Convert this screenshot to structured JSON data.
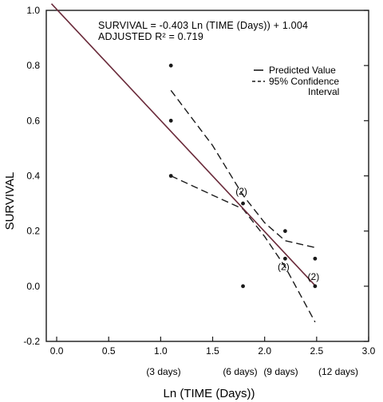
{
  "chart_data": {
    "type": "scatter",
    "title": "",
    "xlabel": "Ln (TIME (Days))",
    "ylabel": "SURVIVAL",
    "xlim": [
      -0.1,
      3.0
    ],
    "ylim": [
      -0.2,
      1.0
    ],
    "x_ticks": [
      "0.0",
      "0.5",
      "1.0",
      "1.5",
      "2.0",
      "2.5",
      "3.0"
    ],
    "x_tick_values": [
      0.0,
      0.5,
      1.0,
      1.5,
      2.0,
      2.5,
      3.0
    ],
    "y_ticks": [
      "1.0",
      "0.8",
      "0.6",
      "0.4",
      "0.2",
      "0.0",
      "-0.2"
    ],
    "y_tick_values": [
      1.0,
      0.8,
      0.6,
      0.4,
      0.2,
      0.0,
      -0.2
    ],
    "day_labels": [
      {
        "x": 1.0986,
        "text": "(3 days)"
      },
      {
        "x": 1.7918,
        "text": "(6 days)"
      },
      {
        "x": 2.1972,
        "text": "(9 days)"
      },
      {
        "x": 2.4849,
        "text": "(12 days)"
      }
    ],
    "equation": "SURVIVAL = -0.403 Ln (TIME (Days)) + 1.004",
    "r_squared": "ADJUSTED R² = 0.719",
    "legend": {
      "position": "top-right",
      "items": [
        {
          "style": "solid",
          "label": "Predicted Value"
        },
        {
          "style": "dashed",
          "label": "95% Confidence",
          "label2": "Interval"
        }
      ]
    },
    "points": [
      {
        "x": 1.0986,
        "y": 0.8
      },
      {
        "x": 1.0986,
        "y": 0.6
      },
      {
        "x": 1.0986,
        "y": 0.4
      },
      {
        "x": 1.7918,
        "y": 0.3
      },
      {
        "x": 1.7918,
        "y": 0.0
      },
      {
        "x": 2.1972,
        "y": 0.2
      },
      {
        "x": 2.1972,
        "y": 0.1
      },
      {
        "x": 2.4849,
        "y": 0.1
      },
      {
        "x": 2.4849,
        "y": 0.0
      }
    ],
    "point_annotations": [
      {
        "x": 1.7918,
        "y": 0.3,
        "text": "(2)"
      },
      {
        "x": 2.1972,
        "y": 0.1,
        "text": "(2)"
      },
      {
        "x": 2.4849,
        "y": 0.0,
        "text": "(2)"
      }
    ],
    "regression": {
      "slope": -0.403,
      "intercept": 1.004,
      "x_range": [
        -0.05,
        2.4849
      ]
    },
    "ci_upper": {
      "x": [
        1.0986,
        1.5,
        1.7918,
        2.0,
        2.1972,
        2.4849
      ],
      "y": [
        0.71,
        0.51,
        0.33,
        0.23,
        0.165,
        0.14
      ]
    },
    "ci_lower": {
      "x": [
        1.0986,
        1.5,
        1.7918,
        2.0,
        2.1972,
        2.4849
      ],
      "y": [
        0.4,
        0.33,
        0.28,
        0.18,
        0.07,
        -0.13
      ]
    },
    "colors": {
      "line": "#6a2a3a",
      "ink": "#1a1a1a"
    }
  }
}
